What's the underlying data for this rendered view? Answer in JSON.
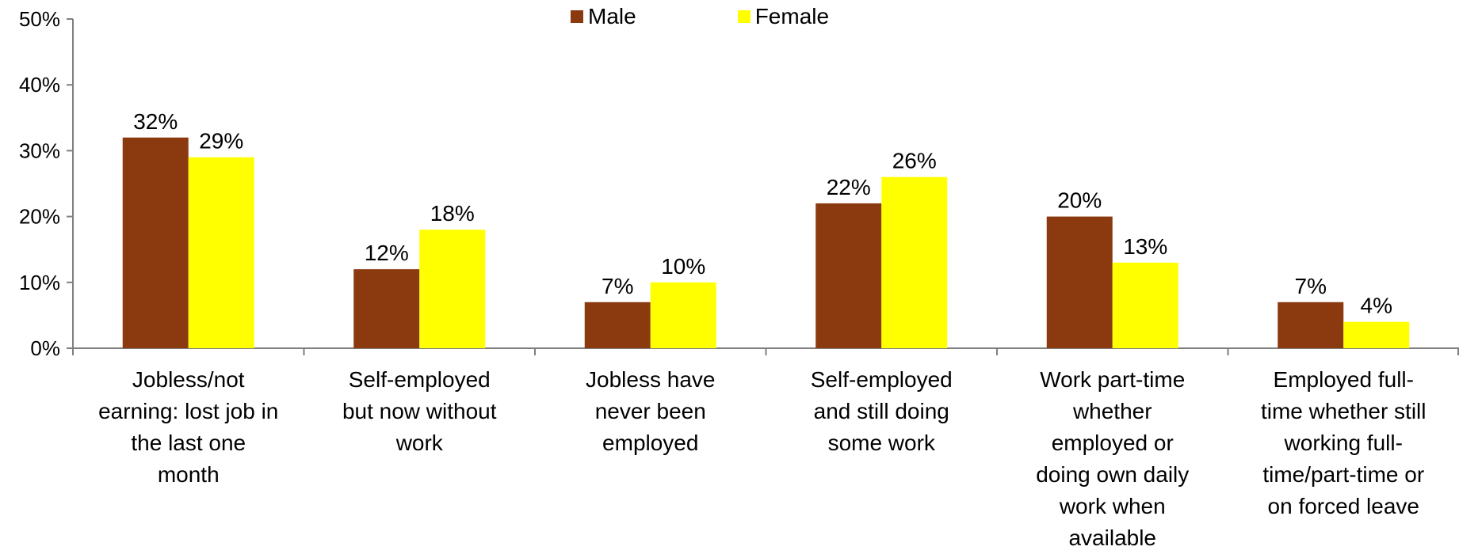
{
  "chart_data": {
    "type": "bar",
    "categories": [
      "Jobless/not earning: lost job in the last one month",
      "Self-employed but now without work",
      "Jobless have never been employed",
      "Self-employed and still doing some work",
      "Work part-time whether employed or doing own daily work when available",
      "Employed full-time whether still working full-time/part-time or on forced leave"
    ],
    "category_display": [
      "Jobless/not\nearning: lost job in\nthe last one\nmonth",
      "Self-employed\nbut now without\nwork",
      "Jobless have\nnever been\nemployed",
      "Self-employed\nand still doing\nsome work",
      "Work part-time\nwhether\nemployed or\ndoing own daily\nwork when\navailable",
      "Employed full-\ntime whether still\nworking full-\ntime/part-time or\non forced leave"
    ],
    "series": [
      {
        "name": "Male",
        "values": [
          32,
          12,
          7,
          22,
          20,
          7
        ],
        "color": "#8B3A0F"
      },
      {
        "name": "Female",
        "values": [
          29,
          18,
          10,
          26,
          13,
          4
        ],
        "color": "#FFFF00"
      }
    ],
    "data_labels": [
      [
        "32%",
        "12%",
        "7%",
        "22%",
        "20%",
        "7%"
      ],
      [
        "29%",
        "18%",
        "10%",
        "26%",
        "13%",
        "4%"
      ]
    ],
    "y_ticks": [
      0,
      10,
      20,
      30,
      40,
      50
    ],
    "y_tick_labels": [
      "0%",
      "10%",
      "20%",
      "30%",
      "40%",
      "50%"
    ],
    "ylim": [
      0,
      50
    ],
    "legend_position": "top-center",
    "grid": false,
    "title": "",
    "xlabel": "",
    "ylabel": ""
  }
}
